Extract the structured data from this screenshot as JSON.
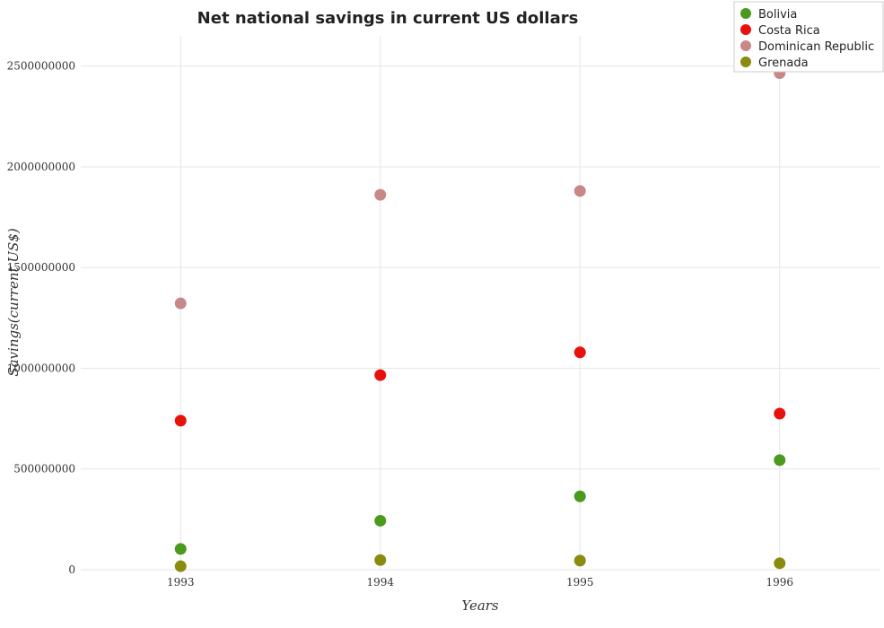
{
  "chart_data": {
    "type": "scatter",
    "title": "Net national savings in current US dollars",
    "xlabel": "Years",
    "ylabel": "Savings(current US$)",
    "categories": [
      "1993",
      "1994",
      "1995",
      "1996"
    ],
    "ylim": [
      0,
      2650000000
    ],
    "yticks": [
      0,
      500000000,
      1000000000,
      1500000000,
      2000000000,
      2500000000
    ],
    "ytick_labels": [
      "0",
      "500000000",
      "1000000000",
      "1500000000",
      "2000000000",
      "2500000000"
    ],
    "grid": true,
    "legend_position": "top-right",
    "series": [
      {
        "name": "Bolivia",
        "color": "#4a9a1e",
        "values": [
          103000000,
          243000000,
          364000000,
          544000000
        ]
      },
      {
        "name": "Costa Rica",
        "color": "#e8120c",
        "values": [
          740000000,
          966000000,
          1079000000,
          775000000
        ]
      },
      {
        "name": "Dominican Republic",
        "color": "#c98888",
        "values": [
          1322000000,
          1861000000,
          1880000000,
          2465000000
        ]
      },
      {
        "name": "Grenada",
        "color": "#8a8c10",
        "values": [
          17000000,
          48000000,
          45000000,
          32000000
        ]
      }
    ]
  }
}
